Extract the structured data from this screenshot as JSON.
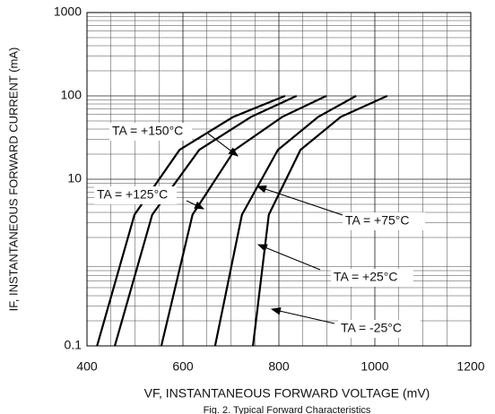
{
  "chart_data": {
    "type": "line",
    "caption": "Fig. 2. Typical Forward Characteristics",
    "x_label": "VF, INSTANTANEOUS FORWARD VOLTAGE (mV)",
    "y_label": "IF, INSTANTANEOUS FORWARD CURRENT (mA)",
    "y_log": true,
    "grid": true,
    "xlim": [
      400,
      1200
    ],
    "xticks": [
      400,
      600,
      800,
      1000,
      1200
    ],
    "ylim": [
      0.1,
      1000
    ],
    "yticks": [
      0.1,
      10,
      100,
      1000
    ],
    "series": [
      {
        "name": "TA = +150°C",
        "color": "#000000",
        "x": [
          421,
          499,
          593,
          705,
          813
        ],
        "values": [
          0.1,
          3.75,
          22.5,
          56,
          100
        ]
      },
      {
        "name": "TA = +125°C",
        "color": "#000000",
        "x": [
          458,
          536,
          634,
          742,
          837
        ],
        "values": [
          0.1,
          3.75,
          22.5,
          56,
          100
        ]
      },
      {
        "name": "TA = +75°C",
        "color": "#000000",
        "x": [
          555,
          620,
          708,
          807,
          899
        ],
        "values": [
          0.1,
          3.75,
          22.5,
          56,
          100
        ]
      },
      {
        "name": "TA = +25°C",
        "color": "#000000",
        "x": [
          667,
          723,
          798,
          882,
          961
        ],
        "values": [
          0.1,
          3.75,
          22.5,
          56,
          100
        ]
      },
      {
        "name": "TA = -25°C",
        "color": "#000000",
        "x": [
          746,
          779,
          845,
          929,
          1026
        ],
        "values": [
          0.1,
          3.75,
          22.5,
          56,
          100
        ]
      }
    ]
  }
}
